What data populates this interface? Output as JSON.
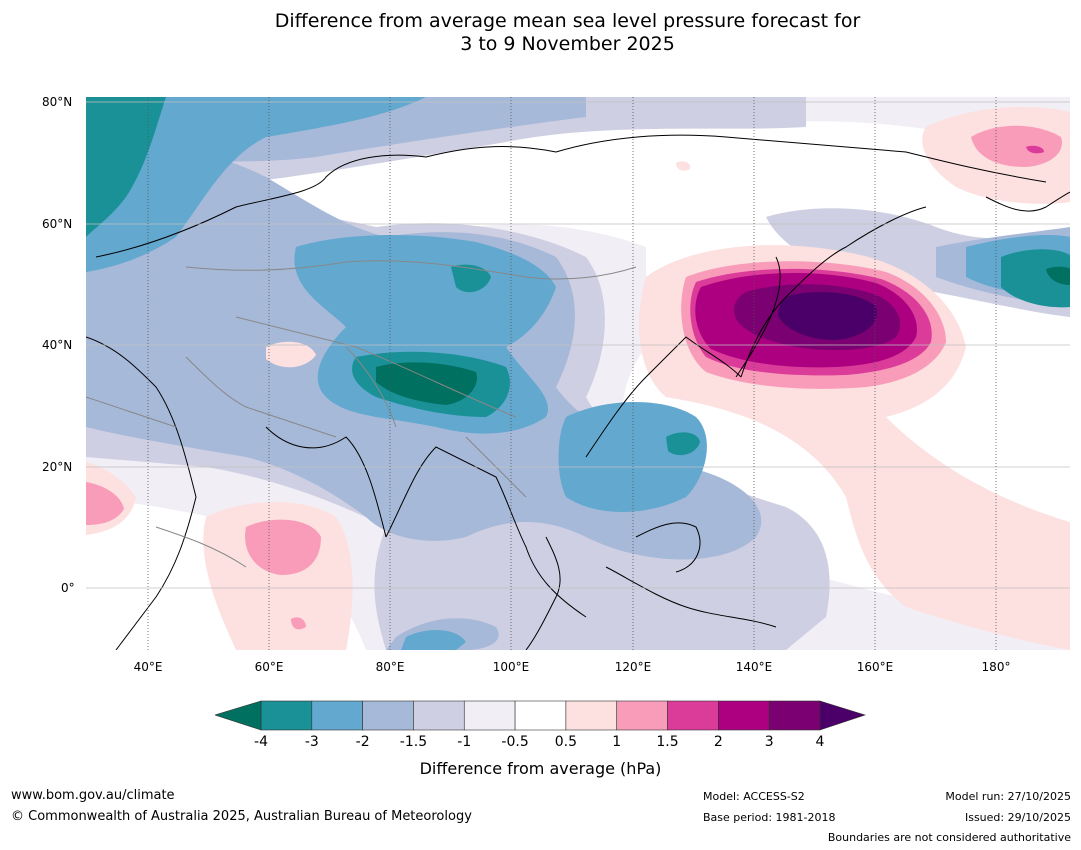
{
  "title": {
    "line1": "Difference from average mean sea level pressure forecast for",
    "line2": "3 to 9 November 2025"
  },
  "map": {
    "lat_labels": [
      "80°N",
      "60°N",
      "40°N",
      "20°N",
      "0°"
    ],
    "lon_labels": [
      "40°E",
      "60°E",
      "80°E",
      "100°E",
      "120°E",
      "140°E",
      "160°E",
      "180°"
    ]
  },
  "colorbar": {
    "ticks": [
      "-4",
      "-3",
      "-2",
      "-1.5",
      "-1",
      "-0.5",
      "0.5",
      "1",
      "1.5",
      "2",
      "3",
      "4"
    ],
    "colors": [
      "#1a9197",
      "#63a8cf",
      "#a6b9d8",
      "#cfcfe3",
      "#f2eef5",
      "#ffffff",
      "#fde0e0",
      "#f89cba",
      "#db3b99",
      "#ad0081",
      "#7b0072"
    ],
    "under_color": "#007060",
    "over_color": "#4a0068",
    "label": "Difference from average (hPa)"
  },
  "footer": {
    "website": "www.bom.gov.au/climate",
    "copyright": "© Commonwealth of Australia 2025, Australian Bureau of Meteorology",
    "model": "Model: ACCESS-S2",
    "base_period": "Base period: 1981-2018",
    "model_run": "Model run: 27/10/2025",
    "issued": "Issued: 29/10/2025",
    "disclaimer": "Boundaries are not considered authoritative"
  }
}
